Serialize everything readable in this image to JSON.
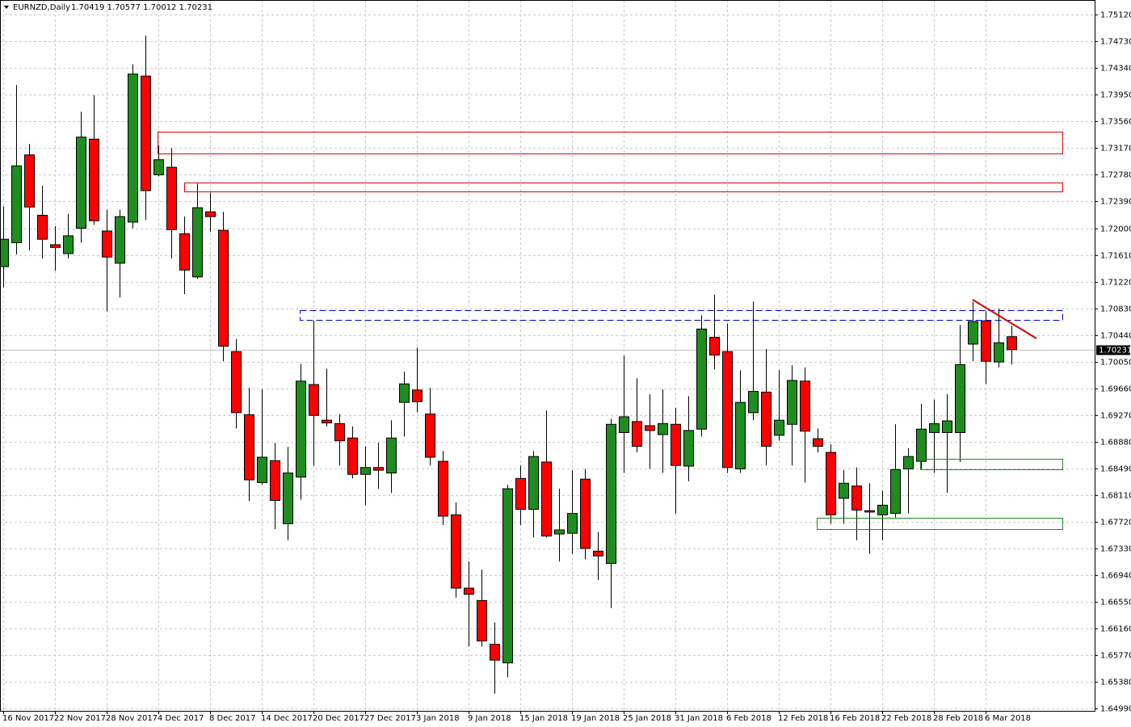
{
  "chart_data": {
    "type": "candlestick",
    "title": "EURNZD,Daily",
    "ohlc_header": "1.70419 1.70577 1.70012 1.70231",
    "last_price": {
      "value": 1.70231,
      "label": "1.70231"
    },
    "up_color": "#1e8c1e",
    "down_color": "#ff0000",
    "grid": true,
    "categories": [
      "16 Nov 2017",
      null,
      null,
      null,
      "22 Nov 2017",
      null,
      null,
      null,
      "28 Nov 2017",
      null,
      null,
      null,
      "4 Dec 2017",
      null,
      null,
      null,
      "8 Dec 2017",
      null,
      null,
      null,
      "14 Dec 2017",
      null,
      null,
      null,
      "20 Dec 2017",
      null,
      null,
      null,
      "27 Dec 2017",
      null,
      null,
      null,
      "3 Jan 2018",
      null,
      null,
      null,
      "9 Jan 2018",
      null,
      null,
      null,
      "15 Jan 2018",
      null,
      null,
      null,
      "19 Jan 2018",
      null,
      null,
      null,
      "25 Jan 2018",
      null,
      null,
      null,
      "31 Jan 2018",
      null,
      null,
      null,
      "6 Feb 2018",
      null,
      null,
      null,
      "12 Feb 2018",
      null,
      null,
      null,
      "16 Feb 2018",
      null,
      null,
      null,
      "22 Feb 2018",
      null,
      null,
      null,
      "28 Feb 2018",
      null,
      null,
      null,
      "6 Mar 2018",
      null,
      null
    ],
    "open": [
      1.7144,
      1.7179,
      1.7307,
      1.7219,
      1.7176,
      1.7163,
      1.72,
      1.733,
      1.7196,
      1.7149,
      1.7209,
      1.7422,
      1.7278,
      1.7289,
      1.7192,
      1.7129,
      1.7224,
      1.7197,
      1.702,
      1.6928,
      1.6829,
      1.6861,
      1.6769,
      1.6837,
      1.6972,
      1.692,
      1.6915,
      1.6894,
      1.6841,
      1.6851,
      1.6843,
      1.6946,
      1.6964,
      1.6929,
      1.686,
      1.6782,
      1.6675,
      1.6657,
      1.6593,
      1.6566,
      1.6835,
      1.679,
      1.6859,
      1.6754,
      1.6755,
      1.6834,
      1.6729,
      1.6711,
      1.6902,
      1.6918,
      1.6912,
      1.6899,
      1.6914,
      1.6853,
      1.6907,
      1.7041,
      1.702,
      1.6849,
      1.6931,
      1.6961,
      1.6898,
      1.6914,
      1.6977,
      1.6893,
      1.6873,
      1.6806,
      1.6824,
      1.6788,
      1.6782,
      1.6784,
      1.6849,
      1.686,
      1.6902,
      1.6902,
      1.6902,
      1.7031,
      1.7065,
      1.7005,
      1.70419
    ],
    "high": [
      1.7232,
      1.7409,
      1.7323,
      1.7262,
      1.7203,
      1.7221,
      1.737,
      1.7394,
      1.7227,
      1.7227,
      1.7439,
      1.7481,
      1.7321,
      1.7317,
      1.7217,
      1.7265,
      1.7252,
      1.7224,
      1.7038,
      1.6967,
      1.6965,
      1.6887,
      1.6881,
      1.7002,
      1.7065,
      1.6995,
      1.6929,
      1.6911,
      1.6882,
      1.6887,
      1.692,
      1.6991,
      1.7026,
      1.6967,
      1.6875,
      1.68,
      1.6714,
      1.6702,
      1.6625,
      1.6826,
      1.6854,
      1.6875,
      1.6934,
      1.682,
      1.6847,
      1.6849,
      1.6757,
      1.6922,
      1.7014,
      1.6981,
      1.6958,
      1.6965,
      1.6938,
      1.6955,
      1.7073,
      1.7103,
      1.7061,
      1.6993,
      1.7093,
      1.7024,
      1.6993,
      1.7,
      1.6997,
      1.6908,
      1.6885,
      1.6847,
      1.6851,
      1.6828,
      1.6817,
      1.6914,
      1.6879,
      1.6944,
      1.695,
      1.6958,
      1.7059,
      1.7093,
      1.7079,
      1.7083,
      1.70577
    ],
    "low": [
      1.7114,
      1.7162,
      1.7168,
      1.7156,
      1.7138,
      1.7156,
      1.7179,
      1.7205,
      1.7079,
      1.7099,
      1.72,
      1.7212,
      1.7276,
      1.7156,
      1.7104,
      1.7126,
      1.7195,
      1.7006,
      1.6908,
      1.6802,
      1.6826,
      1.6761,
      1.6745,
      1.6804,
      1.6854,
      1.6911,
      1.6854,
      1.6835,
      1.6796,
      1.682,
      1.6814,
      1.6896,
      1.6932,
      1.6854,
      1.6767,
      1.6661,
      1.659,
      1.659,
      1.6521,
      1.6545,
      1.6767,
      1.6749,
      1.6749,
      1.6714,
      1.6725,
      1.6717,
      1.6687,
      1.6646,
      1.6843,
      1.6873,
      1.6849,
      1.6843,
      1.6784,
      1.6831,
      1.6896,
      1.6994,
      1.6843,
      1.6843,
      1.692,
      1.6854,
      1.689,
      1.6854,
      1.6829,
      1.6873,
      1.6769,
      1.6769,
      1.6745,
      1.6725,
      1.6745,
      1.6778,
      1.6784,
      1.6849,
      1.6843,
      1.6814,
      1.6859,
      1.7006,
      1.6973,
      1.6997,
      1.70012
    ],
    "close": [
      1.7184,
      1.7291,
      1.7231,
      1.7184,
      1.7172,
      1.7189,
      1.7333,
      1.7211,
      1.7158,
      1.7217,
      1.7425,
      1.7255,
      1.73,
      1.7198,
      1.7139,
      1.723,
      1.7217,
      1.7028,
      1.6931,
      1.6833,
      1.6866,
      1.6803,
      1.6843,
      1.6977,
      1.6927,
      1.6916,
      1.689,
      1.6841,
      1.6851,
      1.6847,
      1.6894,
      1.6973,
      1.6947,
      1.6866,
      1.678,
      1.6675,
      1.6666,
      1.6598,
      1.657,
      1.682,
      1.679,
      1.6867,
      1.6751,
      1.676,
      1.6784,
      1.6733,
      1.6722,
      1.6914,
      1.6925,
      1.6882,
      1.6905,
      1.6915,
      1.6854,
      1.6905,
      1.7053,
      1.7015,
      1.6851,
      1.6946,
      1.6962,
      1.6882,
      1.692,
      1.6978,
      1.6904,
      1.6882,
      1.6782,
      1.6828,
      1.6789,
      1.6786,
      1.6796,
      1.6848,
      1.6867,
      1.6907,
      1.6915,
      1.6919,
      1.7001,
      1.7064,
      1.7006,
      1.7033,
      1.70231
    ],
    "ylim": [
      1.6496,
      1.7533
    ],
    "yticks": [
      {
        "value": 1.7512,
        "label": "1.75120"
      },
      {
        "value": 1.7473,
        "label": "1.74730"
      },
      {
        "value": 1.7434,
        "label": "1.74340"
      },
      {
        "value": 1.7395,
        "label": "1.73950"
      },
      {
        "value": 1.7356,
        "label": "1.73560"
      },
      {
        "value": 1.7317,
        "label": "1.73170"
      },
      {
        "value": 1.7278,
        "label": "1.72780"
      },
      {
        "value": 1.7239,
        "label": "1.72390"
      },
      {
        "value": 1.72,
        "label": "1.72000"
      },
      {
        "value": 1.7161,
        "label": "1.71610"
      },
      {
        "value": 1.7122,
        "label": "1.71220"
      },
      {
        "value": 1.7083,
        "label": "1.70830"
      },
      {
        "value": 1.7044,
        "label": "1.70440"
      },
      {
        "value": 1.7005,
        "label": "1.70050"
      },
      {
        "value": 1.6966,
        "label": "1.69660"
      },
      {
        "value": 1.6927,
        "label": "1.69270"
      },
      {
        "value": 1.6888,
        "label": "1.68880"
      },
      {
        "value": 1.6849,
        "label": "1.68490"
      },
      {
        "value": 1.6811,
        "label": "1.68110"
      },
      {
        "value": 1.6772,
        "label": "1.67720"
      },
      {
        "value": 1.6733,
        "label": "1.67330"
      },
      {
        "value": 1.6694,
        "label": "1.66940"
      },
      {
        "value": 1.6655,
        "label": "1.66550"
      },
      {
        "value": 1.6616,
        "label": "1.66160"
      },
      {
        "value": 1.6577,
        "label": "1.65770"
      },
      {
        "value": 1.6538,
        "label": "1.65380"
      },
      {
        "value": 1.6499,
        "label": "1.64990"
      }
    ]
  }
}
